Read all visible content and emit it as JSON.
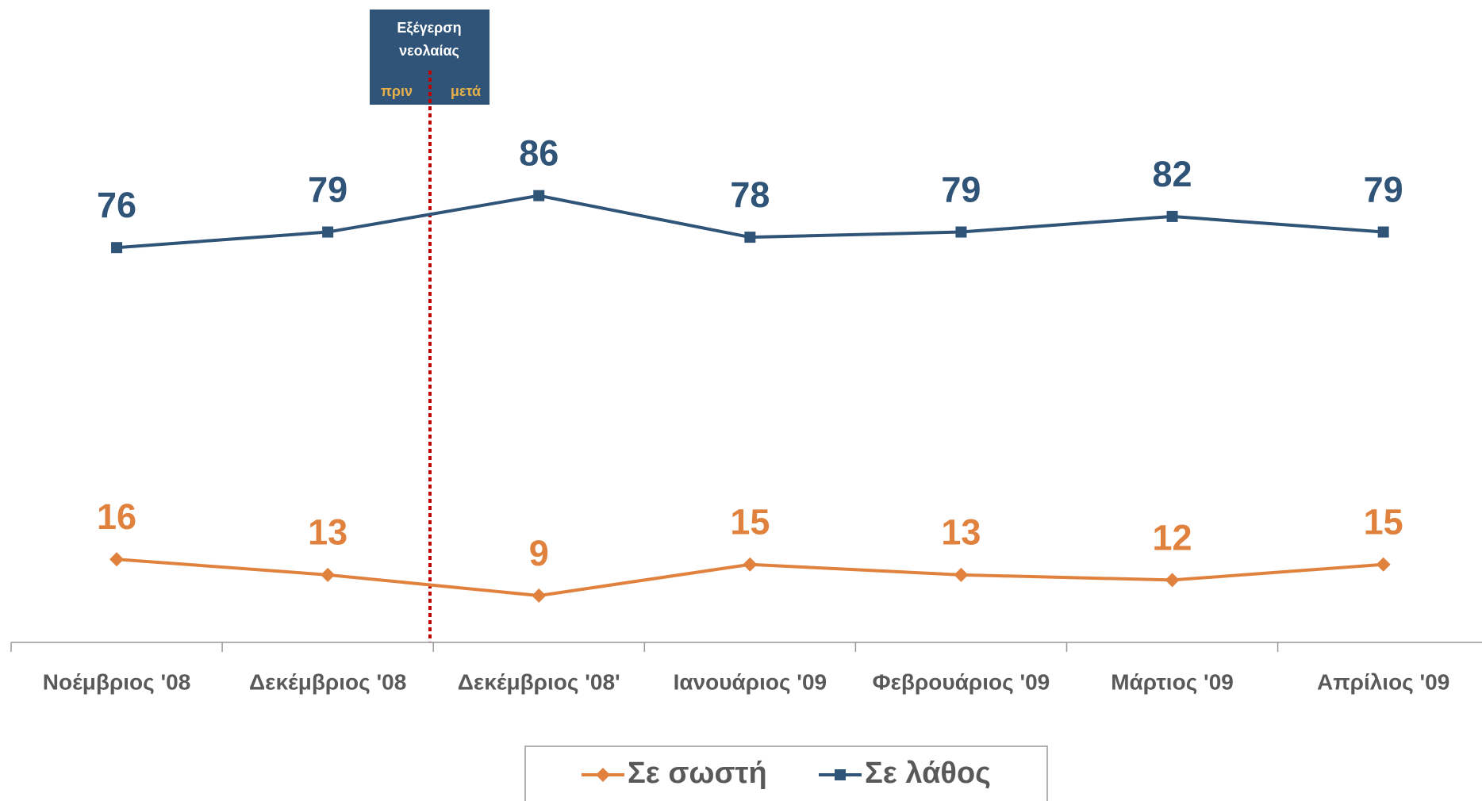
{
  "chart_data": {
    "type": "line",
    "categories": [
      "Νοέμβριος '08",
      "Δεκέμβριος '08",
      "Δεκέμβριος '08'",
      "Ιανουάριος '09",
      "Φεβρουάριος '09",
      "Μάρτιος '09",
      "Απρίλιος '09"
    ],
    "series": [
      {
        "name": "Σε σωστή",
        "color": "#e0823d",
        "marker": "diamond",
        "values": [
          16,
          13,
          9,
          15,
          13,
          12,
          15
        ]
      },
      {
        "name": "Σε λάθος",
        "color": "#2f5478",
        "marker": "square",
        "values": [
          76,
          79,
          86,
          78,
          79,
          82,
          79
        ]
      }
    ],
    "ylim": [
      0,
      100
    ],
    "annotation": {
      "title": [
        "Εξέγερση",
        "νεολαίας"
      ],
      "before": "πριν",
      "after": "μετά"
    },
    "legend": "bottom"
  }
}
